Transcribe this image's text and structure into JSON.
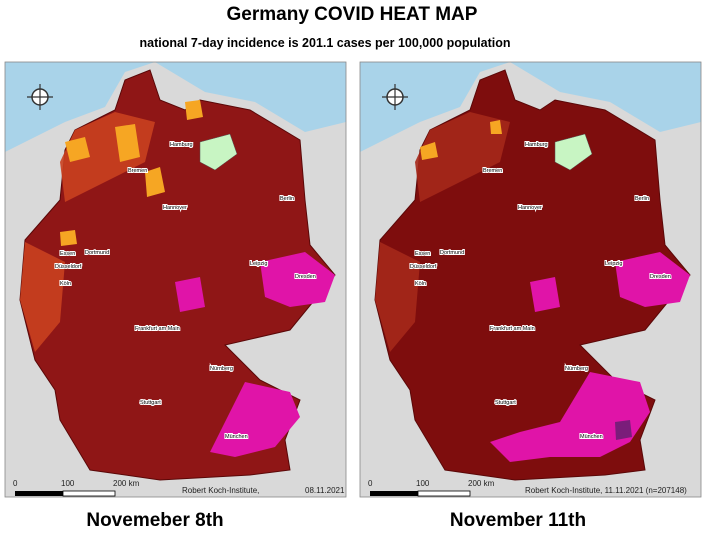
{
  "header": {
    "title": "Germany COVID HEAT MAP",
    "subtitle": "national 7-day incidence is 201.1 cases per 100,000 population"
  },
  "maps": [
    {
      "caption": "Novemeber 8th",
      "credit": "Robert Koch-Institute,",
      "date": "08.11.2021",
      "scale": [
        "0",
        "100",
        "200 km"
      ],
      "cities": [
        "Hamburg",
        "Bremen",
        "Berlin",
        "Hannover",
        "Essen",
        "Dortmund",
        "Düsseldorf",
        "Köln",
        "Leipzig",
        "Dresden",
        "Frankfurt am Main",
        "Nürnberg",
        "Stuttgart",
        "München"
      ]
    },
    {
      "caption": "November 11th",
      "credit": "Robert Koch-Institute, 11.11.2021 (n=207148)",
      "scale": [
        "0",
        "100",
        "200 km"
      ],
      "cities": [
        "Hamburg",
        "Bremen",
        "Berlin",
        "Hannover",
        "Essen",
        "Dortmund",
        "Düsseldorf",
        "Köln",
        "Leipzig",
        "Dresden",
        "Frankfurt am Main",
        "Nürnberg",
        "Stuttgart",
        "München"
      ]
    }
  ]
}
